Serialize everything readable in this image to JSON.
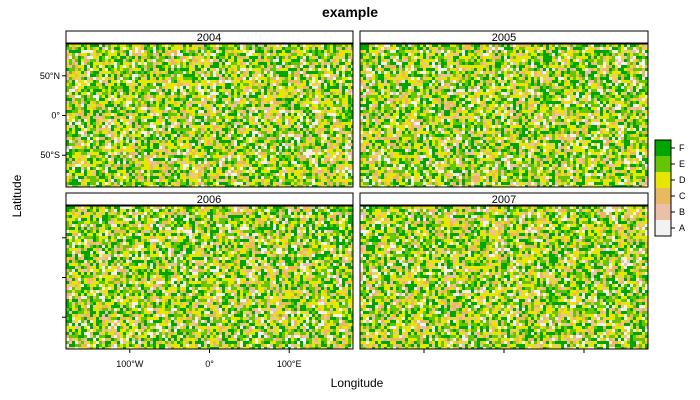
{
  "chart_data": {
    "type": "heatmap",
    "title": "example",
    "xlabel": "Longitude",
    "ylabel": "Latitude",
    "xlim": [
      -180,
      180
    ],
    "ylim": [
      -90,
      90
    ],
    "grid": false,
    "legend_position": "right",
    "panels": [
      {
        "label": "2004"
      },
      {
        "label": "2005"
      },
      {
        "label": "2006"
      },
      {
        "label": "2007"
      }
    ],
    "levels": [
      "A",
      "B",
      "C",
      "D",
      "E",
      "F"
    ],
    "colors": [
      "#f2f2f2",
      "#ecc0a8",
      "#e9b860",
      "#e6e600",
      "#63c600",
      "#00a600"
    ],
    "level_weights": [
      0.12,
      0.08,
      0.13,
      0.25,
      0.2,
      0.22
    ],
    "x_ticks": [
      {
        "value": -100,
        "label": "100°W"
      },
      {
        "value": 0,
        "label": "0°"
      },
      {
        "value": 100,
        "label": "100°E"
      }
    ],
    "y_ticks": [
      {
        "value": 50,
        "label": "50°N"
      },
      {
        "value": 0,
        "label": "0°"
      },
      {
        "value": -50,
        "label": "50°S"
      }
    ]
  }
}
